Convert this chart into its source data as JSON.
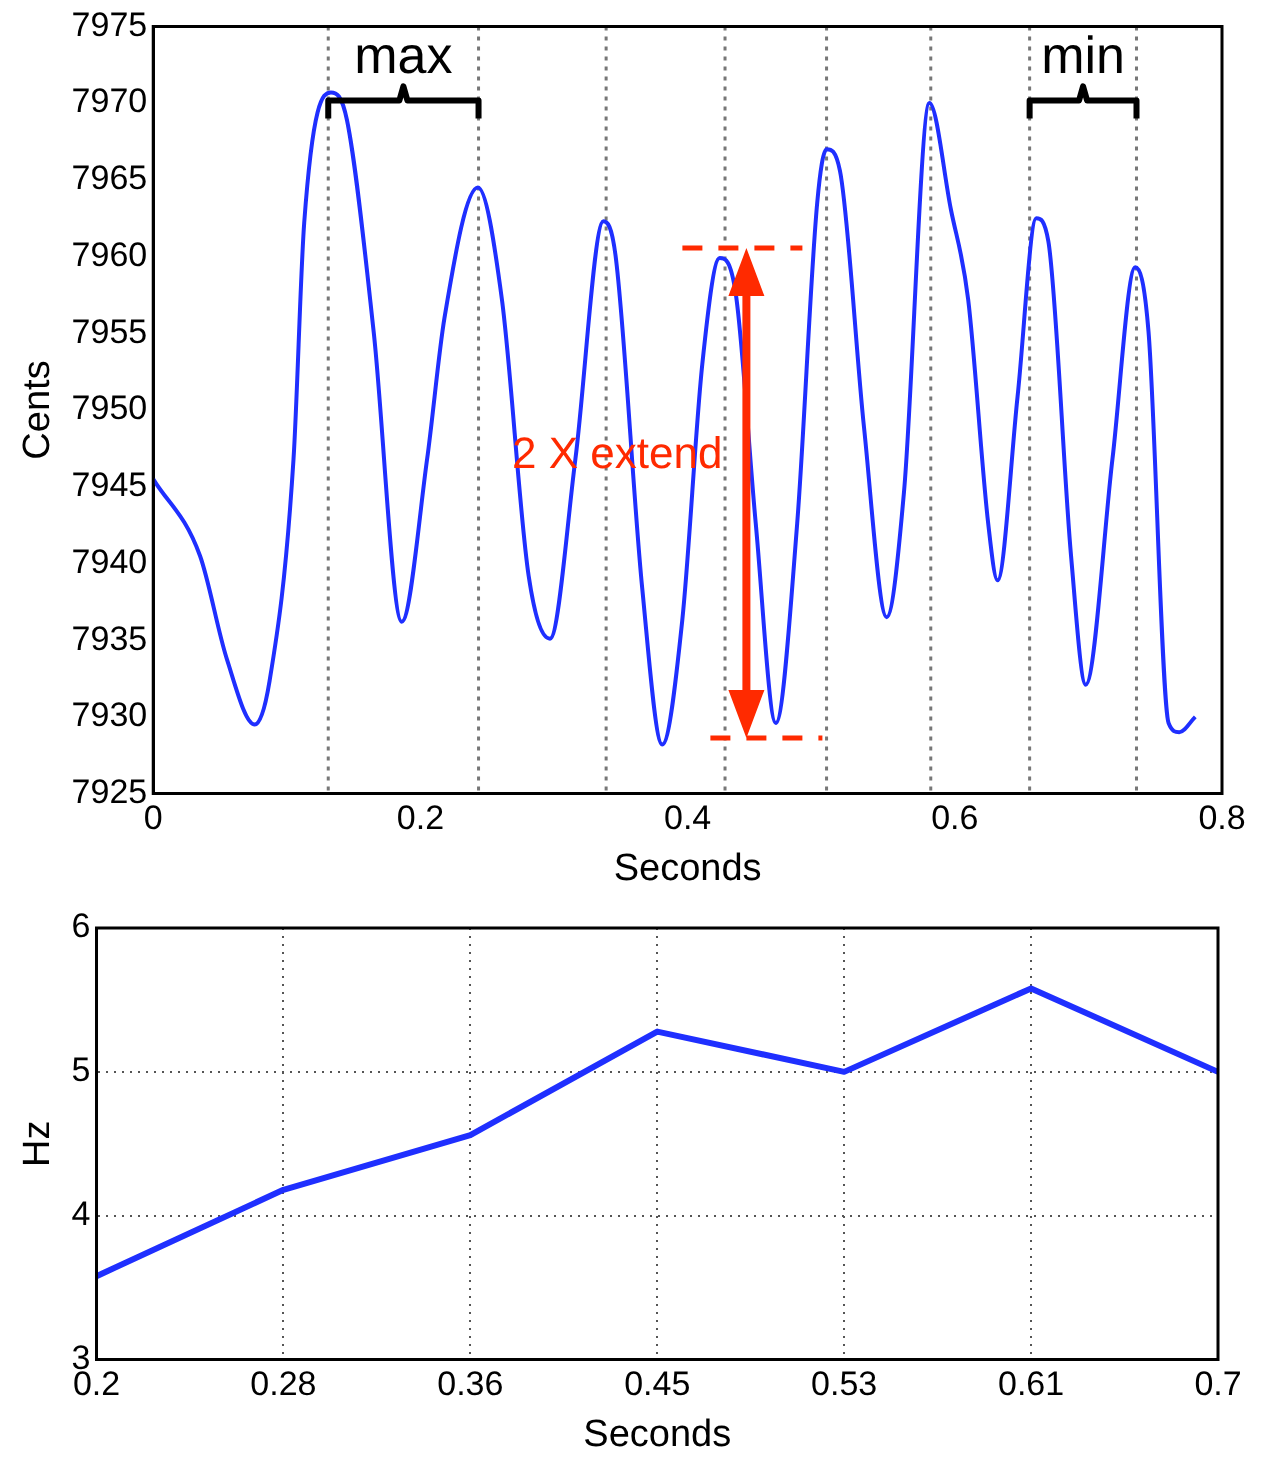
{
  "chart_data": [
    {
      "type": "line",
      "xlabel": "Seconds",
      "ylabel": "Cents",
      "xlim": [
        0,
        0.8
      ],
      "xticks": [
        0,
        0.2,
        0.4,
        0.6,
        0.8
      ],
      "ylim": [
        7925,
        7975
      ],
      "yticks": [
        7925,
        7930,
        7935,
        7940,
        7945,
        7950,
        7955,
        7960,
        7965,
        7970,
        7975
      ],
      "grid": false,
      "legend": false,
      "marker": "none",
      "line_style": "solid",
      "x": [
        0,
        0.035,
        0.055,
        0.076,
        0.087,
        0.105,
        0.113,
        0.133,
        0.145,
        0.165,
        0.186,
        0.205,
        0.218,
        0.243,
        0.261,
        0.281,
        0.297,
        0.316,
        0.337,
        0.346,
        0.366,
        0.381,
        0.396,
        0.411,
        0.424,
        0.436,
        0.451,
        0.466,
        0.482,
        0.497,
        0.504,
        0.514,
        0.532,
        0.549,
        0.562,
        0.581,
        0.597,
        0.61,
        0.625,
        0.632,
        0.647,
        0.661,
        0.67,
        0.687,
        0.698,
        0.718,
        0.735,
        0.745,
        0.76,
        0.768,
        0.78
      ],
      "series": [
        {
          "color": "#1f2fff",
          "values": [
            7945.5,
            7940.5,
            7933.8,
            7929.5,
            7932.3,
            7946.8,
            7962.2,
            7970.7,
            7968.9,
            7955.1,
            7936.2,
            7946.8,
            7956,
            7964.5,
            7957.2,
            7939.2,
            7935.1,
            7946.8,
            7962.3,
            7960.1,
            7938.4,
            7928.2,
            7936.3,
            7953,
            7959.9,
            7957.6,
            7942.6,
            7929.6,
            7942.6,
            7963.5,
            7967,
            7965.6,
            7948.9,
            7936.5,
            7944.7,
            7970,
            7963.1,
            7957.2,
            7942.6,
            7938.9,
            7950.9,
            7962.5,
            7961,
            7940.5,
            7932.1,
            7946.8,
            7959.3,
            7955.1,
            7929.6,
            7929,
            7930
          ]
        }
      ],
      "ref_lines": [
        {
          "axis": "x",
          "value": 0.131,
          "color": "#777777",
          "line_style": "dotted"
        },
        {
          "axis": "x",
          "value": 0.2435,
          "color": "#777777",
          "line_style": "dotted"
        },
        {
          "axis": "x",
          "value": 0.339,
          "color": "#777777",
          "line_style": "dotted"
        },
        {
          "axis": "x",
          "value": 0.428,
          "color": "#777777",
          "line_style": "dotted"
        },
        {
          "axis": "x",
          "value": 0.504,
          "color": "#777777",
          "line_style": "dotted"
        },
        {
          "axis": "x",
          "value": 0.582,
          "color": "#777777",
          "line_style": "dotted"
        },
        {
          "axis": "x",
          "value": 0.656,
          "color": "#777777",
          "line_style": "dotted"
        },
        {
          "axis": "x",
          "value": 0.736,
          "color": "#777777",
          "line_style": "dotted"
        }
      ],
      "annotations": [
        "max",
        "min",
        {
          "text": "2 X extend",
          "x": 0.444,
          "y": 7947
        }
      ]
    },
    {
      "type": "line",
      "xlabel": "Seconds",
      "ylabel": "Hz",
      "categories": [
        "0.2",
        "0.28",
        "0.36",
        "0.45",
        "0.53",
        "0.61",
        "0.7"
      ],
      "ylim": [
        3,
        6
      ],
      "yticks": [
        3,
        4,
        5,
        6
      ],
      "grid": true,
      "legend": false,
      "marker": "none",
      "line_style": "solid",
      "series": [
        {
          "color": "#1f2fff",
          "values": [
            3.58,
            4.18,
            4.56,
            5.28,
            5.0,
            5.58,
            5.0
          ]
        }
      ]
    }
  ]
}
